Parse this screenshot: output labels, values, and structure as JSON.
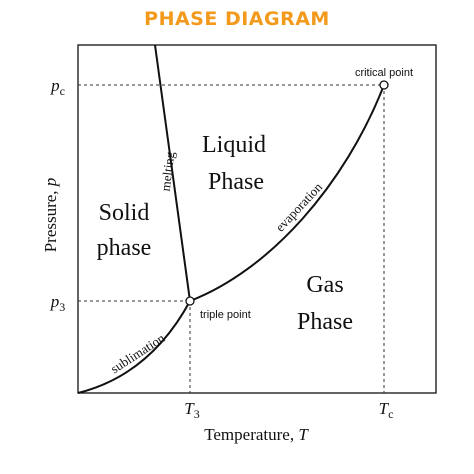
{
  "header": {
    "title": "PHASE DIAGRAM"
  },
  "axes": {
    "y_label": {
      "text": "Pressure, ",
      "symbol": "p"
    },
    "x_label": {
      "text": "Temperature, ",
      "symbol": "T"
    },
    "y_ticks": [
      {
        "symbol": "p",
        "subscript": "c"
      },
      {
        "symbol": "p",
        "subscript": "3"
      }
    ],
    "x_ticks": [
      {
        "symbol": "T",
        "subscript": "3"
      },
      {
        "symbol": "T",
        "subscript": "c"
      }
    ]
  },
  "regions": [
    {
      "lines": [
        "Solid",
        "phase"
      ]
    },
    {
      "lines": [
        "Liquid",
        "Phase"
      ]
    },
    {
      "lines": [
        "Gas",
        "Phase"
      ]
    }
  ],
  "curves": {
    "melting": "melting",
    "evaporation": "evaporation",
    "sublimation": "sublimation"
  },
  "points": {
    "critical": "critical point",
    "triple": "triple point"
  }
}
